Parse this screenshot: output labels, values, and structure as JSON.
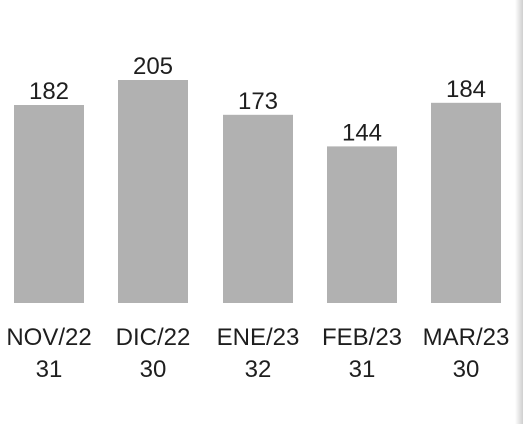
{
  "chart_data": {
    "type": "bar",
    "categories": [
      "NOV/22",
      "DIC/22",
      "ENE/23",
      "FEB/23",
      "MAR/23"
    ],
    "values": [
      182,
      205,
      173,
      144,
      184
    ],
    "secondary_labels": [
      "31",
      "30",
      "32",
      "31",
      "30"
    ],
    "ylim": [
      0,
      210
    ],
    "grid": false,
    "legend": "none",
    "colors": {
      "bar": "#b1b1b1",
      "text": "#1e1e1e"
    }
  }
}
